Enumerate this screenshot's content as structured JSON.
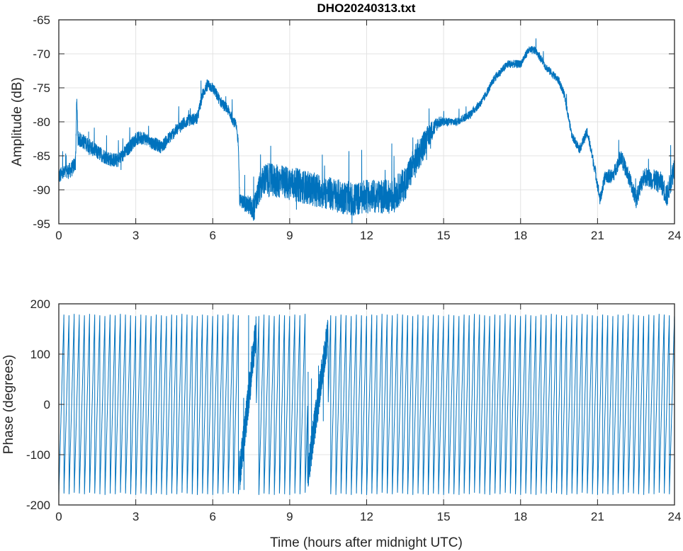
{
  "chart_data": [
    {
      "type": "line",
      "title": "DHO20240313.txt",
      "xlabel": "",
      "ylabel": "Amplitude (dB)",
      "xlim": [
        0,
        24
      ],
      "ylim": [
        -95,
        -65
      ],
      "xticks": [
        "0",
        "3",
        "6",
        "9",
        "12",
        "15",
        "18",
        "21",
        "24"
      ],
      "yticks": [
        "-65",
        "-70",
        "-75",
        "-80",
        "-85",
        "-90",
        "-95"
      ],
      "grid": true,
      "color": "#0072BD",
      "series": [
        {
          "name": "amplitude",
          "x": [
            0,
            0.5,
            0.65,
            0.7,
            0.75,
            1.0,
            1.5,
            2.0,
            2.3,
            2.7,
            3.0,
            3.3,
            3.6,
            4.0,
            4.5,
            5.0,
            5.4,
            5.6,
            5.8,
            6.0,
            6.3,
            6.6,
            6.9,
            7.0,
            7.05,
            7.5,
            7.6,
            7.8,
            8.0,
            9.0,
            10.0,
            11.0,
            11.5,
            12.0,
            13.0,
            13.5,
            14.0,
            14.5,
            14.8,
            15.5,
            16.0,
            16.5,
            17.0,
            17.5,
            18.0,
            18.3,
            18.6,
            19.0,
            19.5,
            19.7,
            20.0,
            20.3,
            20.6,
            20.9,
            21.1,
            21.3,
            21.6,
            21.9,
            22.3,
            22.5,
            22.8,
            23.5,
            23.7,
            24.0
          ],
          "y": [
            -88,
            -87,
            -86,
            -77,
            -82.5,
            -83,
            -84.5,
            -85.5,
            -85.7,
            -84,
            -82.5,
            -82.3,
            -83,
            -83.7,
            -81.5,
            -79.8,
            -79.5,
            -76,
            -74.5,
            -75,
            -77,
            -78.3,
            -80.5,
            -83,
            -91.5,
            -92.5,
            -93,
            -90,
            -88.5,
            -89,
            -90,
            -91,
            -91.5,
            -91,
            -91,
            -89,
            -85,
            -81.5,
            -80,
            -80,
            -79,
            -77,
            -73.5,
            -71.5,
            -71.5,
            -69.5,
            -69.5,
            -72,
            -74,
            -76,
            -82,
            -84,
            -81.5,
            -87,
            -91.5,
            -88,
            -88,
            -85,
            -89,
            -91.5,
            -88,
            -89,
            -91,
            -86.5
          ],
          "noise_db": {
            "x": [
              0,
              7,
              8,
              14,
              15,
              20,
              24
            ],
            "y": [
              1.2,
              0.8,
              2.5,
              2.5,
              0.6,
              0.6,
              1.8
            ]
          }
        }
      ]
    },
    {
      "type": "line",
      "title": "",
      "xlabel": "Time (hours after midnight UTC)",
      "ylabel": "Phase (degrees)",
      "xlim": [
        0,
        24
      ],
      "ylim": [
        -200,
        200
      ],
      "xticks": [
        "0",
        "3",
        "6",
        "9",
        "12",
        "15",
        "18",
        "21",
        "24"
      ],
      "yticks": [
        "200",
        "100",
        "0",
        "-100",
        "-200"
      ],
      "grid": true,
      "color": "#0072BD",
      "series": [
        {
          "name": "phase",
          "wrap_range": [
            -180,
            180
          ],
          "wrap_period_hours": 0.2,
          "disturbed_intervals": [
            [
              7.05,
              7.7
            ],
            [
              9.7,
              10.5
            ]
          ]
        }
      ]
    }
  ]
}
